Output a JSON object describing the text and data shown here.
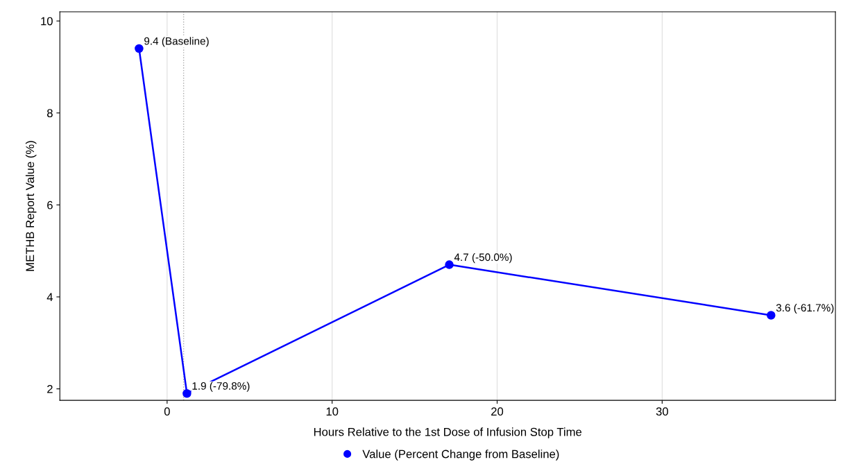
{
  "chart_data": {
    "type": "line",
    "xlabel": "Hours Relative to the 1st Dose of Infusion Stop Time",
    "ylabel": "METHB Report Value (%)",
    "x": [
      -1.7,
      1.2,
      17.1,
      36.6
    ],
    "series": [
      {
        "name": "Value (Percent Change from Baseline)",
        "color": "#0000ff",
        "values": [
          9.4,
          1.9,
          4.7,
          3.6
        ]
      }
    ],
    "xlim": [
      -6.5,
      40.5
    ],
    "xticks": [
      0,
      10,
      20,
      30
    ],
    "ylim": [
      1.75,
      10.2
    ],
    "yticks": [
      2,
      4,
      6,
      8,
      10
    ],
    "grid": "x",
    "legend": "bottom",
    "marker": "circle",
    "line_style": "solid",
    "ref_lines": [
      {
        "axis": "x",
        "value": 1.0,
        "color": "#aaaaaa",
        "line_style": "dotted"
      }
    ],
    "annotations": [
      {
        "text": "9.4 (Baseline)",
        "x": -1.7,
        "y": 9.4
      },
      {
        "text": "1.9 (-79.8%)",
        "x": 1.2,
        "y": 1.9
      },
      {
        "text": "4.7 (-50.0%)",
        "x": 17.1,
        "y": 4.7
      },
      {
        "text": "3.6 (-61.7%)",
        "x": 36.6,
        "y": 3.6
      }
    ]
  }
}
